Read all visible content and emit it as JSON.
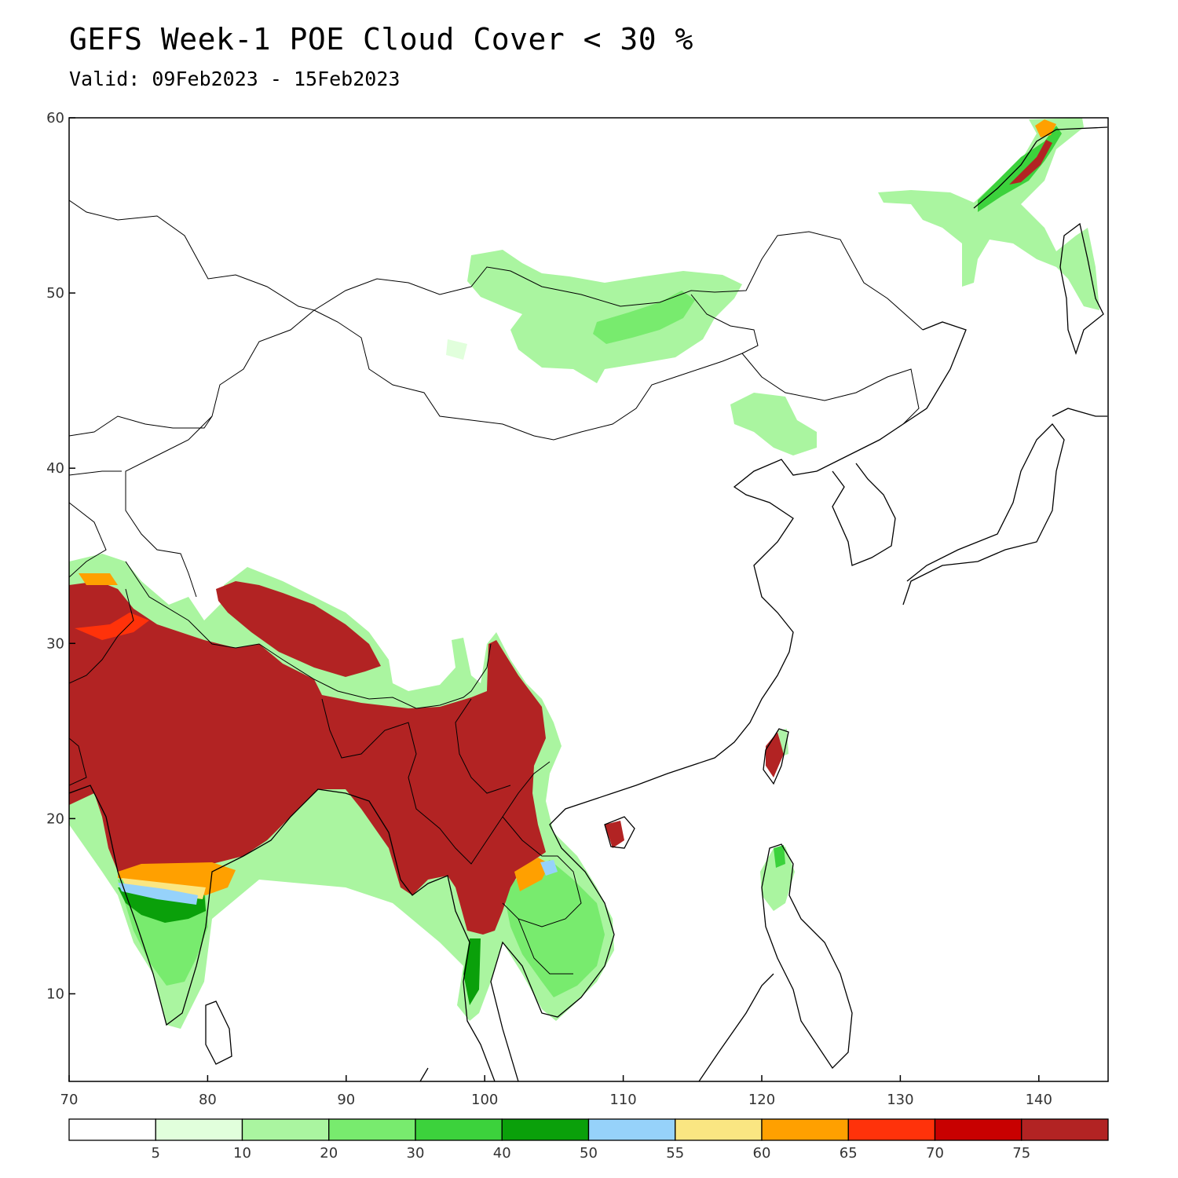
{
  "title": "GEFS Week-1 POE Cloud Cover < 30 %",
  "subtitle": "Valid: 09Feb2023 - 15Feb2023",
  "map": {
    "lon_range": [
      70,
      145
    ],
    "lat_range": [
      5,
      60
    ],
    "lon_ticks": [
      "70",
      "80",
      "90",
      "100",
      "110",
      "120",
      "130",
      "140"
    ],
    "lat_ticks": [
      "10",
      "20",
      "30",
      "40",
      "50",
      "60"
    ]
  },
  "colorbar": {
    "colors": [
      "#ffffff",
      "#e1ffdc",
      "#aaf5a0",
      "#78eb6e",
      "#3cd23c",
      "#0aa00a",
      "#96d2fa",
      "#fae682",
      "#ffa000",
      "#ff320a",
      "#c80000",
      "#b22323"
    ],
    "labels": [
      "5",
      "10",
      "20",
      "30",
      "40",
      "50",
      "55",
      "60",
      "65",
      "70",
      "75"
    ]
  }
}
